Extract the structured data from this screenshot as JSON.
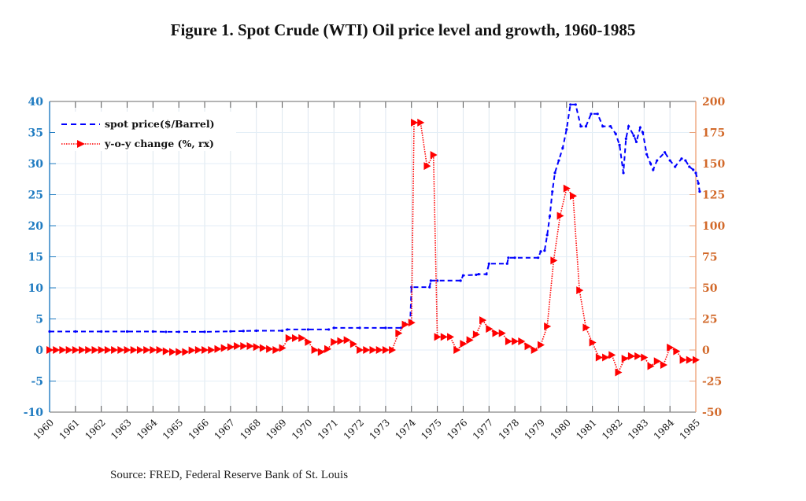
{
  "chart_data": {
    "type": "line",
    "title": "Figure 1. Spot Crude (WTI) Oil price level and growth, 1960-1985",
    "source": "Source: FRED, Federal Reserve Bank of St. Louis",
    "xlabel": "",
    "ylabel_left": "",
    "ylabel_right": "",
    "xlim": [
      1960,
      1985
    ],
    "ylim_left": [
      -10,
      40
    ],
    "ylim_right": [
      -50,
      200
    ],
    "grid": true,
    "legend_position": "top-left",
    "x_ticks": [
      "1960",
      "1961",
      "1962",
      "1963",
      "1964",
      "1965",
      "1966",
      "1967",
      "1968",
      "1969",
      "1970",
      "1971",
      "1972",
      "1973",
      "1974",
      "1975",
      "1976",
      "1977",
      "1978",
      "1979",
      "1980",
      "1981",
      "1982",
      "1983",
      "1984",
      "1985"
    ],
    "y_ticks_left": [
      "40",
      "35",
      "30",
      "25",
      "20",
      "15",
      "10",
      "5",
      "0",
      "-5",
      "-10"
    ],
    "y_ticks_right": [
      "200",
      "175",
      "150",
      "125",
      "100",
      "75",
      "50",
      "25",
      "0",
      "-25",
      "-50"
    ],
    "colors": {
      "left_axis": "#1f7bc1",
      "right_axis": "#d2692a",
      "spot": "#0000ff",
      "yoy": "#ff0000"
    },
    "series": [
      {
        "name": "spot price($/Barrel)",
        "axis": "left",
        "style": "dashed",
        "points": [
          [
            1960.0,
            2.97
          ],
          [
            1961.0,
            2.97
          ],
          [
            1962.0,
            2.97
          ],
          [
            1963.0,
            2.97
          ],
          [
            1964.0,
            2.97
          ],
          [
            1964.5,
            2.92
          ],
          [
            1965.0,
            2.92
          ],
          [
            1966.0,
            2.93
          ],
          [
            1967.0,
            3.0
          ],
          [
            1967.5,
            3.05
          ],
          [
            1968.0,
            3.1
          ],
          [
            1969.0,
            3.1
          ],
          [
            1969.2,
            3.3
          ],
          [
            1970.0,
            3.3
          ],
          [
            1970.8,
            3.3
          ],
          [
            1971.0,
            3.56
          ],
          [
            1972.0,
            3.56
          ],
          [
            1973.0,
            3.56
          ],
          [
            1973.6,
            3.56
          ],
          [
            1973.75,
            4.3
          ],
          [
            1973.95,
            4.3
          ],
          [
            1974.0,
            10.11
          ],
          [
            1974.7,
            10.11
          ],
          [
            1974.75,
            11.16
          ],
          [
            1975.0,
            11.16
          ],
          [
            1975.9,
            11.16
          ],
          [
            1976.0,
            12.0
          ],
          [
            1976.5,
            12.1
          ],
          [
            1976.6,
            12.2
          ],
          [
            1976.9,
            12.2
          ],
          [
            1977.0,
            13.9
          ],
          [
            1977.7,
            13.9
          ],
          [
            1977.75,
            14.85
          ],
          [
            1978.0,
            14.85
          ],
          [
            1978.9,
            14.85
          ],
          [
            1979.0,
            15.85
          ],
          [
            1979.15,
            16.0
          ],
          [
            1979.25,
            18.5
          ],
          [
            1979.35,
            21.5
          ],
          [
            1979.45,
            25.5
          ],
          [
            1979.55,
            28.5
          ],
          [
            1979.7,
            30.5
          ],
          [
            1979.85,
            32.5
          ],
          [
            1980.0,
            35.5
          ],
          [
            1980.15,
            39.5
          ],
          [
            1980.35,
            39.5
          ],
          [
            1980.55,
            36.0
          ],
          [
            1980.75,
            36.0
          ],
          [
            1980.95,
            38.0
          ],
          [
            1981.2,
            38.0
          ],
          [
            1981.4,
            36.0
          ],
          [
            1981.7,
            36.0
          ],
          [
            1981.9,
            34.8
          ],
          [
            1982.05,
            33.0
          ],
          [
            1982.2,
            28.5
          ],
          [
            1982.3,
            34.0
          ],
          [
            1982.4,
            36.0
          ],
          [
            1982.6,
            34.5
          ],
          [
            1982.7,
            33.5
          ],
          [
            1982.85,
            35.8
          ],
          [
            1982.95,
            35.0
          ],
          [
            1983.1,
            31.5
          ],
          [
            1983.25,
            30.0
          ],
          [
            1983.35,
            29.0
          ],
          [
            1983.5,
            30.5
          ],
          [
            1983.8,
            31.8
          ],
          [
            1984.0,
            30.5
          ],
          [
            1984.2,
            29.5
          ],
          [
            1984.45,
            30.8
          ],
          [
            1984.6,
            30.5
          ],
          [
            1984.75,
            29.5
          ],
          [
            1984.9,
            29.0
          ],
          [
            1985.0,
            28.5
          ],
          [
            1985.1,
            26.8
          ],
          [
            1985.15,
            25.5
          ]
        ]
      },
      {
        "name": "y-o-y change (%, rx)",
        "axis": "right",
        "style": "dotted",
        "markers": "triangle-right",
        "points": [
          [
            1960.0,
            0
          ],
          [
            1960.25,
            0
          ],
          [
            1960.5,
            0
          ],
          [
            1960.75,
            0
          ],
          [
            1961.0,
            0
          ],
          [
            1961.25,
            0
          ],
          [
            1961.5,
            0
          ],
          [
            1961.75,
            0
          ],
          [
            1962.0,
            0
          ],
          [
            1962.25,
            0
          ],
          [
            1962.5,
            0
          ],
          [
            1962.75,
            0
          ],
          [
            1963.0,
            0
          ],
          [
            1963.25,
            0
          ],
          [
            1963.5,
            0
          ],
          [
            1963.75,
            0
          ],
          [
            1964.0,
            0
          ],
          [
            1964.25,
            0
          ],
          [
            1964.5,
            -1
          ],
          [
            1964.75,
            -1.6
          ],
          [
            1965.0,
            -1.6
          ],
          [
            1965.25,
            -1.6
          ],
          [
            1965.5,
            -0.3
          ],
          [
            1965.75,
            0
          ],
          [
            1966.0,
            0
          ],
          [
            1966.25,
            0
          ],
          [
            1966.5,
            0.8
          ],
          [
            1966.75,
            1.6
          ],
          [
            1967.0,
            2.4
          ],
          [
            1967.25,
            3.2
          ],
          [
            1967.5,
            3.2
          ],
          [
            1967.75,
            3.2
          ],
          [
            1968.0,
            2.4
          ],
          [
            1968.25,
            1.6
          ],
          [
            1968.5,
            0.8
          ],
          [
            1968.75,
            0
          ],
          [
            1969.0,
            1.6
          ],
          [
            1969.25,
            9.6
          ],
          [
            1969.5,
            9.6
          ],
          [
            1969.75,
            9.6
          ],
          [
            1970.0,
            6.4
          ],
          [
            1970.25,
            0
          ],
          [
            1970.5,
            -1.6
          ],
          [
            1970.75,
            0.8
          ],
          [
            1971.0,
            6.4
          ],
          [
            1971.25,
            7.2
          ],
          [
            1971.5,
            8.0
          ],
          [
            1971.75,
            4.8
          ],
          [
            1972.0,
            0
          ],
          [
            1972.25,
            0
          ],
          [
            1972.5,
            0
          ],
          [
            1972.75,
            0
          ],
          [
            1973.0,
            0
          ],
          [
            1973.25,
            0
          ],
          [
            1973.5,
            13.5
          ],
          [
            1973.75,
            20.5
          ],
          [
            1974.0,
            22
          ],
          [
            1974.1,
            183
          ],
          [
            1974.35,
            183
          ],
          [
            1974.6,
            148
          ],
          [
            1974.85,
            157
          ],
          [
            1975.0,
            10.5
          ],
          [
            1975.25,
            10.5
          ],
          [
            1975.5,
            10.5
          ],
          [
            1975.75,
            0
          ],
          [
            1976.0,
            5
          ],
          [
            1976.25,
            8
          ],
          [
            1976.5,
            12.5
          ],
          [
            1976.75,
            24
          ],
          [
            1977.0,
            17
          ],
          [
            1977.25,
            13.5
          ],
          [
            1977.5,
            13.5
          ],
          [
            1977.75,
            7
          ],
          [
            1978.0,
            7
          ],
          [
            1978.25,
            7
          ],
          [
            1978.5,
            3
          ],
          [
            1978.75,
            0
          ],
          [
            1979.0,
            4
          ],
          [
            1979.25,
            19
          ],
          [
            1979.5,
            72
          ],
          [
            1979.75,
            108
          ],
          [
            1980.0,
            130
          ],
          [
            1980.25,
            124
          ],
          [
            1980.5,
            48
          ],
          [
            1980.75,
            18
          ],
          [
            1981.0,
            6
          ],
          [
            1981.25,
            -6
          ],
          [
            1981.5,
            -6
          ],
          [
            1981.75,
            -4
          ],
          [
            1982.0,
            -18
          ],
          [
            1982.25,
            -7
          ],
          [
            1982.5,
            -5
          ],
          [
            1982.75,
            -5
          ],
          [
            1983.0,
            -6
          ],
          [
            1983.25,
            -13
          ],
          [
            1983.5,
            -9
          ],
          [
            1983.75,
            -12
          ],
          [
            1984.0,
            2
          ],
          [
            1984.25,
            -1
          ],
          [
            1984.5,
            -8
          ],
          [
            1984.75,
            -8
          ],
          [
            1985.0,
            -8
          ]
        ]
      }
    ]
  }
}
